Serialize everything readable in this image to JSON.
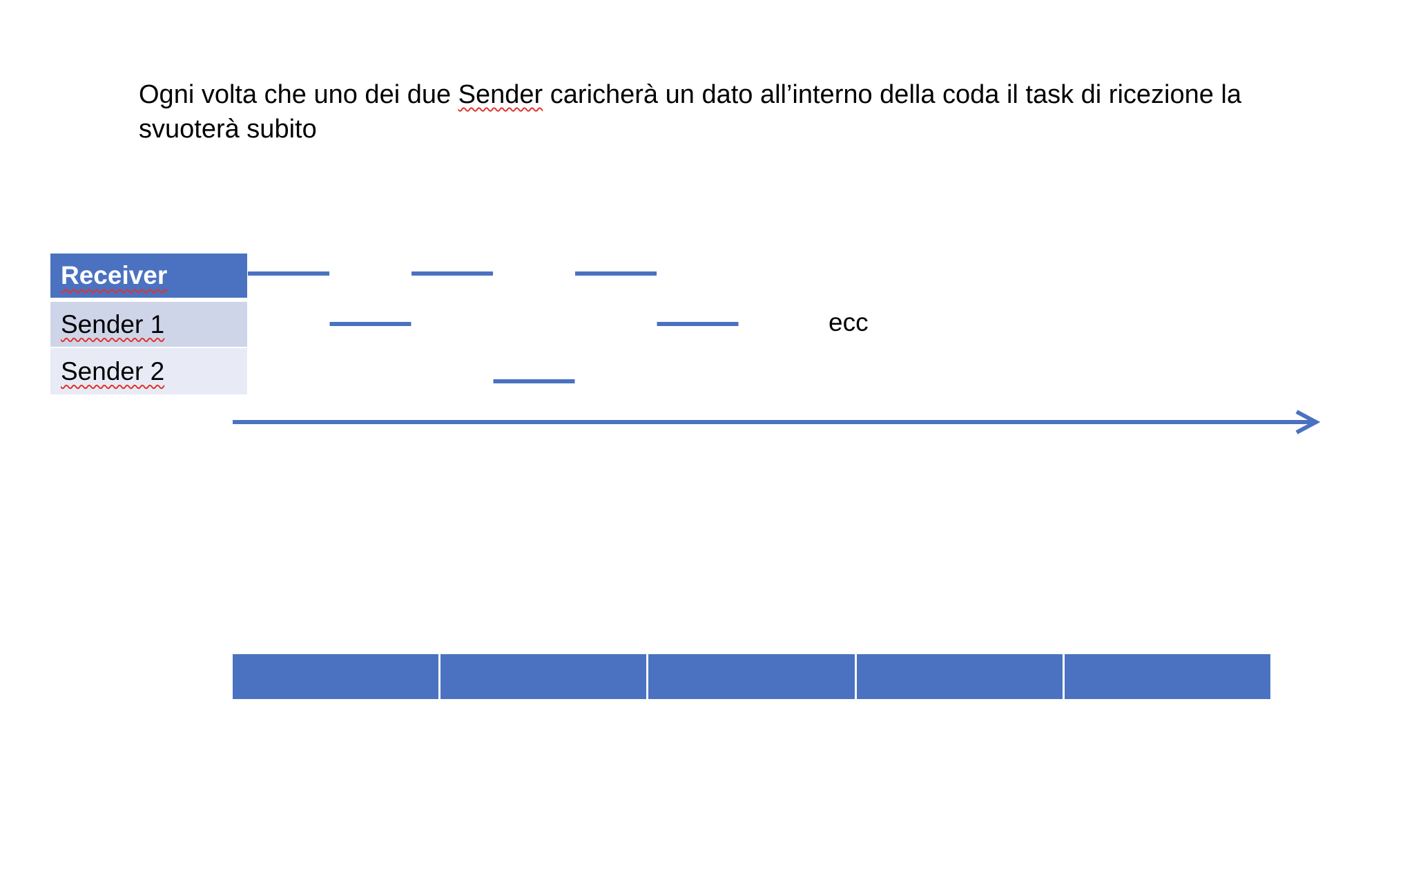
{
  "caption": {
    "before": "Ogni volta che uno dei due ",
    "marked": "Sender",
    "after": " caricherà un dato all’interno della coda il task di ricezione la svuoterà subito"
  },
  "lanes": [
    {
      "id": "receiver",
      "label": "Receiver"
    },
    {
      "id": "sender1",
      "label": "Sender 1"
    },
    {
      "id": "sender2",
      "label": "Sender 2"
    }
  ],
  "activity": [
    {
      "lane": "receiver",
      "slot": 0
    },
    {
      "lane": "sender1",
      "slot": 1
    },
    {
      "lane": "receiver",
      "slot": 2
    },
    {
      "lane": "sender2",
      "slot": 3
    },
    {
      "lane": "receiver",
      "slot": 4
    },
    {
      "lane": "sender1",
      "slot": 5
    }
  ],
  "continuation_label": "ecc",
  "queue": {
    "cells": 5
  },
  "colors": {
    "accent": "#4a72c0",
    "receiver_bg": "#4a72c0",
    "sender1_bg": "#cfd5e8",
    "sender2_bg": "#e8ebf5",
    "spellcheck": "#e0332f"
  }
}
